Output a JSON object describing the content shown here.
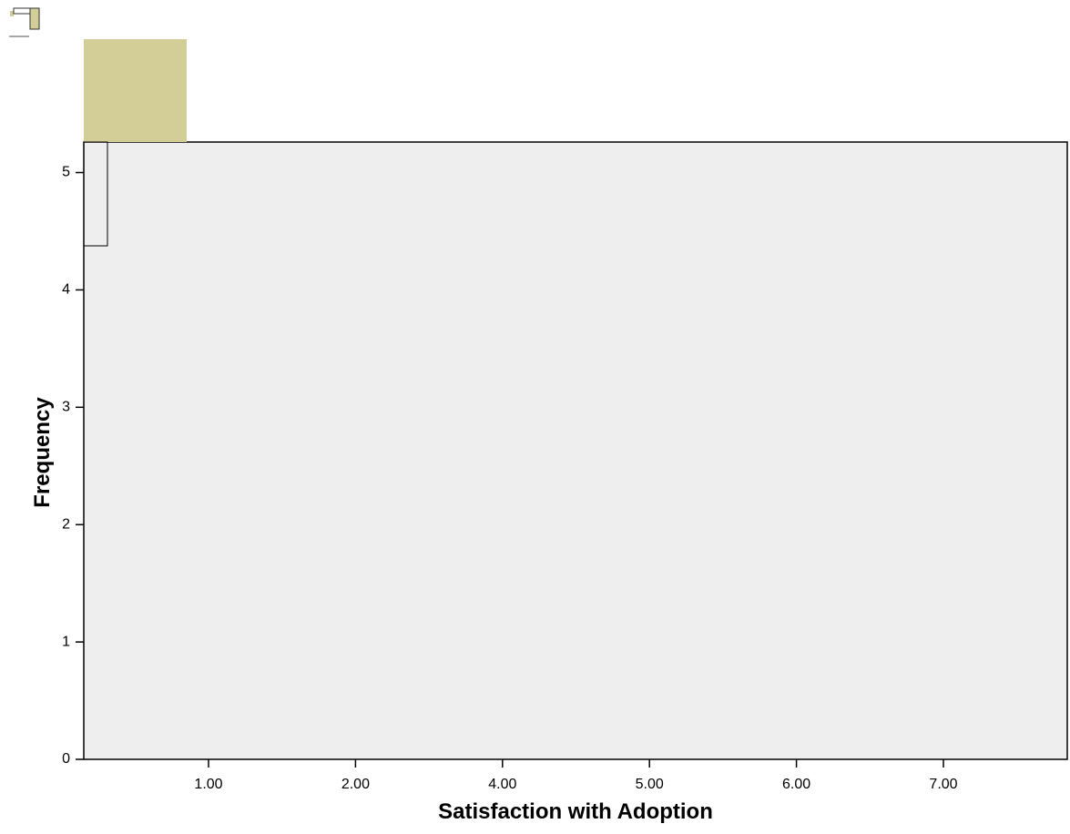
{
  "chart_data": {
    "type": "bar",
    "x_label": "Satisfaction with Adoption",
    "y_label": "Frequency",
    "categories": [
      "1.00",
      "2.00",
      "4.00",
      "5.00",
      "6.00",
      "7.00"
    ],
    "ylim": [
      0,
      5.26
    ],
    "yticks": [
      0,
      1,
      2,
      3,
      4,
      5
    ],
    "plot_background": "#eeeeee",
    "color": "#d3ce97"
  }
}
